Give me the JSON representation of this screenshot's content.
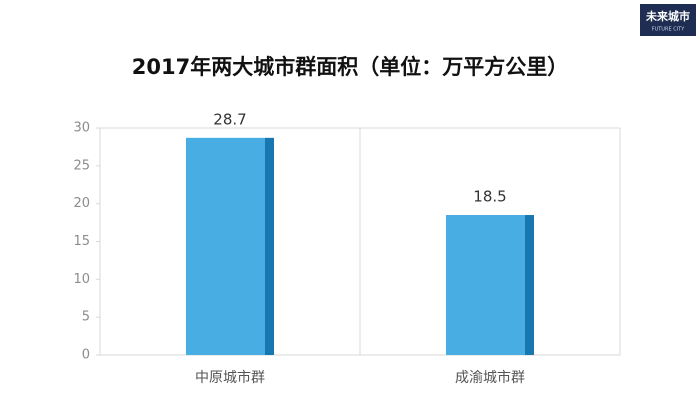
{
  "logo": {
    "text": "未来城市",
    "subtext": "FUTURE CITY"
  },
  "chart_data": {
    "type": "bar",
    "title": "2017年两大城市群面积（单位：万平方公里）",
    "categories": [
      "中原城市群",
      "成渝城市群"
    ],
    "values": [
      28.7,
      18.5
    ],
    "color": "#48ade3",
    "side_color": "#1877b0",
    "ylim": [
      0,
      30
    ],
    "yticks": [
      0,
      5,
      10,
      15,
      20,
      25,
      30
    ],
    "grid": false
  }
}
